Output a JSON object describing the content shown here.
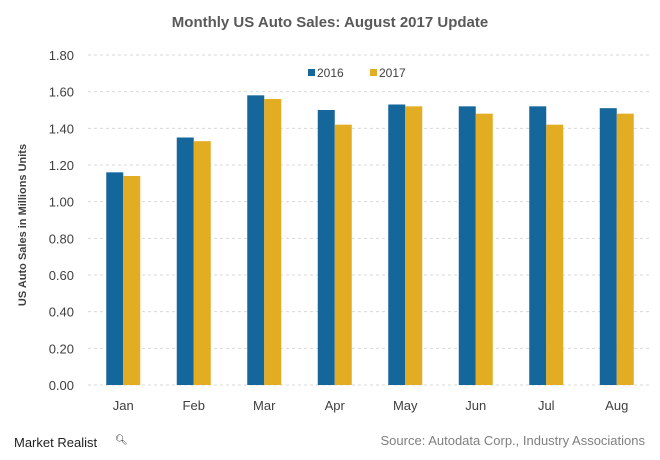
{
  "chart_data": {
    "type": "bar",
    "title": "Monthly  US Auto Sales: August 2017 Update",
    "xlabel": "",
    "ylabel": "US Auto Sales in Millions Units",
    "ylim": [
      0,
      1.8
    ],
    "yticks": [
      "0.00",
      "0.20",
      "0.40",
      "0.60",
      "0.80",
      "1.00",
      "1.20",
      "1.40",
      "1.60",
      "1.80"
    ],
    "categories": [
      "Jan",
      "Feb",
      "Mar",
      "Apr",
      "May",
      "Jun",
      "Jul",
      "Aug"
    ],
    "series": [
      {
        "name": "2016",
        "color": "#15669A",
        "values": [
          1.16,
          1.35,
          1.58,
          1.5,
          1.53,
          1.52,
          1.52,
          1.51
        ]
      },
      {
        "name": "2017",
        "color": "#E2AC23",
        "values": [
          1.14,
          1.33,
          1.56,
          1.42,
          1.52,
          1.48,
          1.42,
          1.48
        ]
      }
    ],
    "grid": true,
    "legend": "top-center"
  },
  "footer": {
    "brand": "Market Realist",
    "source": "Source: Autodata Corp., Industry Associations"
  }
}
